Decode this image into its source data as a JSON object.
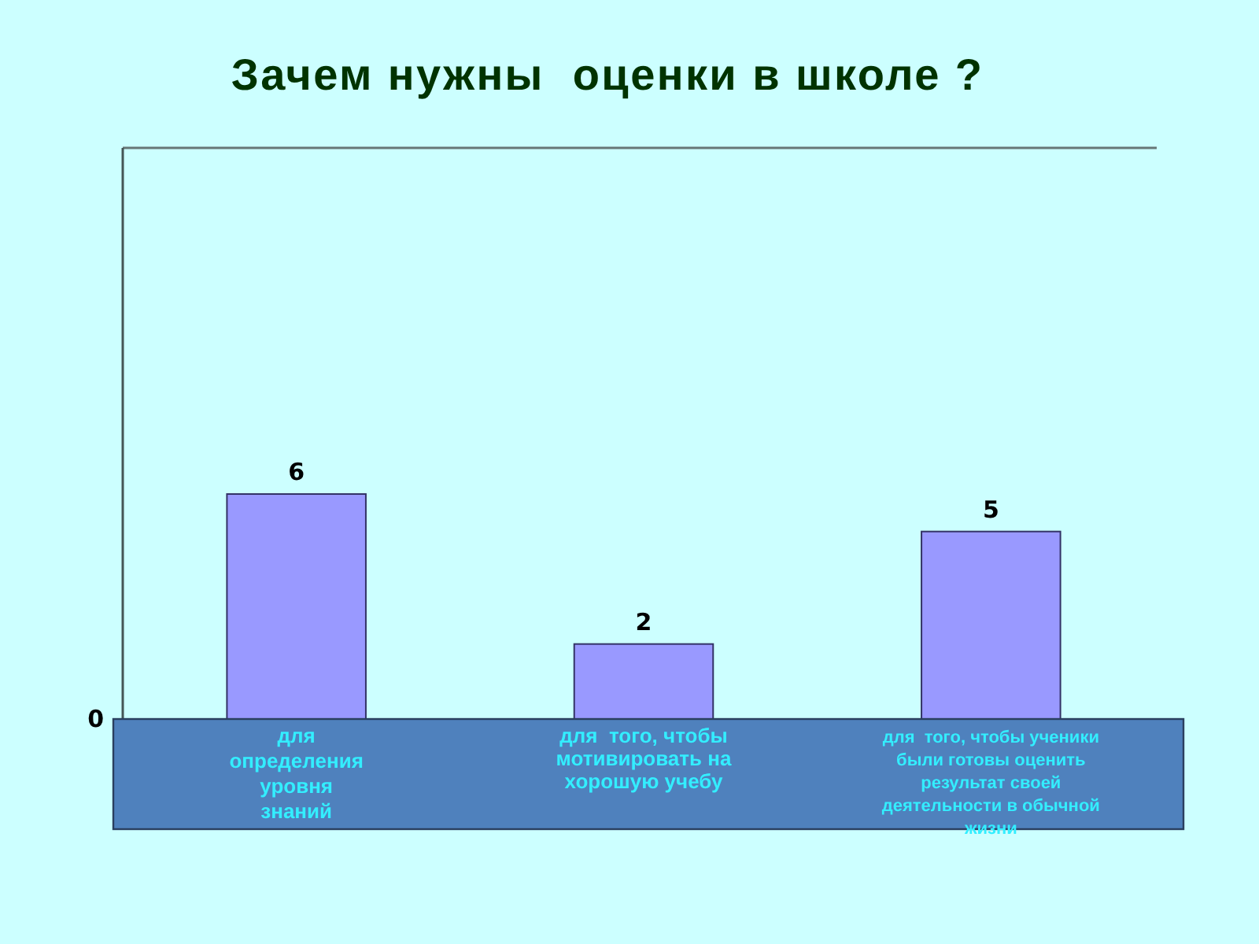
{
  "chart_data": {
    "type": "bar",
    "title": "Зачем нужны  оценки в школе ?",
    "categories": [
      "для определения уровня знаний",
      "для  того, чтобы мотивировать на хорошую учебу",
      "для  того, чтобы ученики были готовы оценить результат своей деятельности в обычной жизни"
    ],
    "values": [
      6,
      2,
      5
    ],
    "color": "#9999ff",
    "data_labels": true,
    "annotations": [
      "0"
    ]
  }
}
